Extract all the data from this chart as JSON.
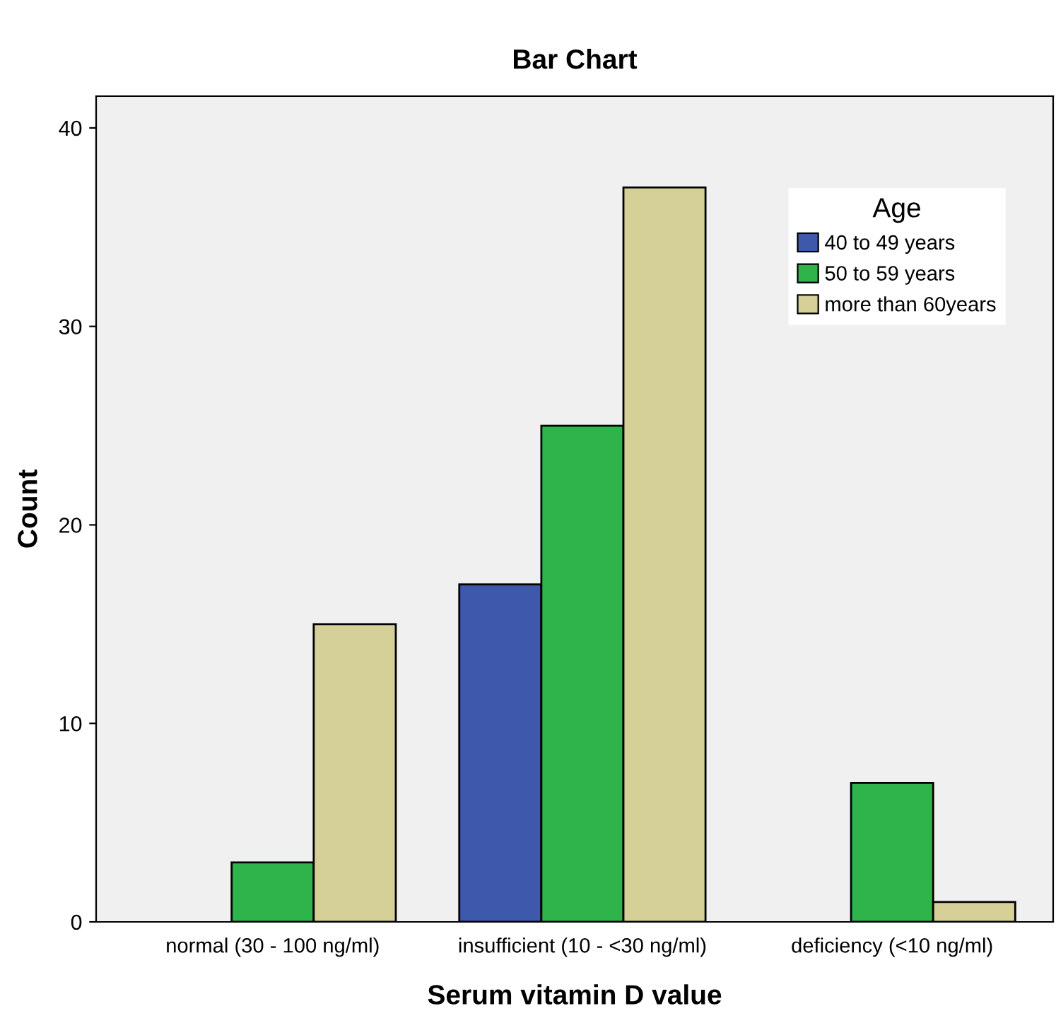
{
  "chart_data": {
    "type": "bar",
    "title": "Bar Chart",
    "xlabel": "Serum vitamin D value",
    "ylabel": "Count",
    "categories": [
      "normal (30 - 100 ng/ml)",
      "insufficient (10 - <30 ng/ml)",
      "deficiency (<10 ng/ml)"
    ],
    "series": [
      {
        "name": "40 to 49 years",
        "color": "#3e58ac",
        "values": [
          null,
          17,
          null
        ]
      },
      {
        "name": "50 to 59 years",
        "color": "#2fb44b",
        "values": [
          3,
          25,
          7
        ]
      },
      {
        "name": "more than 60years",
        "color": "#d5cf98",
        "values": [
          15,
          37,
          1
        ]
      }
    ],
    "legend_title": "Age",
    "legend": "top right",
    "ylim": [
      0,
      41.6
    ],
    "yticks": [
      0,
      10,
      20,
      30,
      40
    ],
    "grid": false
  }
}
